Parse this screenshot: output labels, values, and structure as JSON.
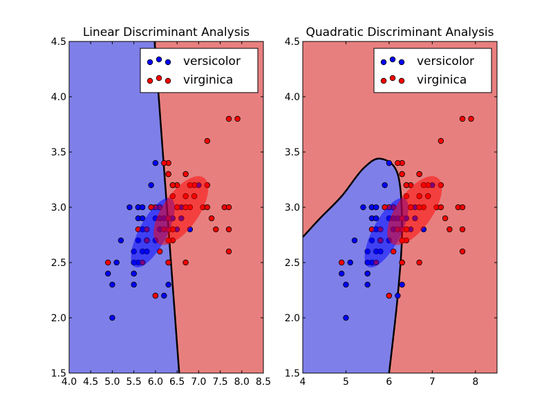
{
  "chart_data": [
    {
      "type": "scatter",
      "title": "Linear Discriminant Analysis",
      "xlabel": "",
      "ylabel": "",
      "xlim": [
        4.0,
        8.5
      ],
      "ylim": [
        1.5,
        4.5
      ],
      "xticks": [
        "4.0",
        "4.5",
        "5.0",
        "5.5",
        "6.0",
        "6.5",
        "7.0",
        "7.5",
        "8.0",
        "8.5"
      ],
      "yticks": [
        "1.5",
        "2.0",
        "2.5",
        "3.0",
        "3.5",
        "4.0",
        "4.5"
      ],
      "legend": {
        "placement": "top-right",
        "entries": [
          "versicolor",
          "virginica"
        ]
      },
      "grid": false,
      "background_regions": [
        {
          "class": "versicolor",
          "color": "#7f7fe9"
        },
        {
          "class": "virginica",
          "color": "#e87f7f"
        }
      ],
      "boundary": {
        "type": "line",
        "points": [
          [
            5.98,
            4.5
          ],
          [
            6.55,
            1.5
          ]
        ]
      },
      "ellipses": [
        {
          "class": "versicolor",
          "center": [
            5.94,
            2.77
          ],
          "color": "#0000ff"
        },
        {
          "class": "virginica",
          "center": [
            6.59,
            2.97
          ],
          "color": "#ff0000"
        }
      ],
      "series": [
        {
          "name": "versicolor",
          "color": "#0000ff",
          "points": [
            [
              7.0,
              3.2
            ],
            [
              6.4,
              3.2
            ],
            [
              6.9,
              3.1
            ],
            [
              5.5,
              2.3
            ],
            [
              6.5,
              2.8
            ],
            [
              5.7,
              2.8
            ],
            [
              6.3,
              3.3
            ],
            [
              4.9,
              2.4
            ],
            [
              6.6,
              2.9
            ],
            [
              5.2,
              2.7
            ],
            [
              5.0,
              2.0
            ],
            [
              5.9,
              3.0
            ],
            [
              6.0,
              2.2
            ],
            [
              6.1,
              2.9
            ],
            [
              5.6,
              2.9
            ],
            [
              6.7,
              3.1
            ],
            [
              5.6,
              3.0
            ],
            [
              5.8,
              2.7
            ],
            [
              6.2,
              2.2
            ],
            [
              5.6,
              2.5
            ],
            [
              5.9,
              3.2
            ],
            [
              6.1,
              2.8
            ],
            [
              6.3,
              2.5
            ],
            [
              6.1,
              2.8
            ],
            [
              6.4,
              2.9
            ],
            [
              6.6,
              3.0
            ],
            [
              6.8,
              2.8
            ],
            [
              6.7,
              3.0
            ],
            [
              6.0,
              2.9
            ],
            [
              5.7,
              2.6
            ],
            [
              5.5,
              2.4
            ],
            [
              5.5,
              2.4
            ],
            [
              5.8,
              2.7
            ],
            [
              6.0,
              2.7
            ],
            [
              5.4,
              3.0
            ],
            [
              6.0,
              3.4
            ],
            [
              6.7,
              3.1
            ],
            [
              6.3,
              2.3
            ],
            [
              5.6,
              3.0
            ],
            [
              5.5,
              2.5
            ],
            [
              5.5,
              2.6
            ],
            [
              6.1,
              3.0
            ],
            [
              5.8,
              2.6
            ],
            [
              5.0,
              2.3
            ],
            [
              5.6,
              2.7
            ],
            [
              5.7,
              3.0
            ],
            [
              5.7,
              2.9
            ],
            [
              6.2,
              2.9
            ],
            [
              5.1,
              2.5
            ],
            [
              5.7,
              2.8
            ]
          ]
        },
        {
          "name": "virginica",
          "color": "#ff0000",
          "points": [
            [
              6.3,
              3.3
            ],
            [
              5.8,
              2.7
            ],
            [
              7.1,
              3.0
            ],
            [
              6.3,
              2.9
            ],
            [
              6.5,
              3.0
            ],
            [
              7.6,
              3.0
            ],
            [
              4.9,
              2.5
            ],
            [
              7.3,
              2.9
            ],
            [
              6.7,
              2.5
            ],
            [
              7.2,
              3.6
            ],
            [
              6.5,
              3.2
            ],
            [
              6.4,
              2.7
            ],
            [
              6.8,
              3.0
            ],
            [
              5.7,
              2.5
            ],
            [
              5.8,
              2.8
            ],
            [
              6.4,
              3.2
            ],
            [
              6.5,
              3.0
            ],
            [
              7.7,
              3.8
            ],
            [
              7.7,
              2.6
            ],
            [
              6.0,
              2.2
            ],
            [
              6.9,
              3.2
            ],
            [
              5.6,
              2.8
            ],
            [
              7.7,
              2.8
            ],
            [
              6.3,
              2.7
            ],
            [
              6.7,
              3.3
            ],
            [
              7.2,
              3.2
            ],
            [
              6.2,
              2.8
            ],
            [
              6.1,
              3.0
            ],
            [
              6.4,
              2.8
            ],
            [
              7.2,
              3.0
            ],
            [
              7.4,
              2.8
            ],
            [
              7.9,
              3.8
            ],
            [
              6.4,
              2.8
            ],
            [
              6.3,
              2.8
            ],
            [
              6.1,
              2.6
            ],
            [
              7.7,
              3.0
            ],
            [
              6.3,
              3.4
            ],
            [
              6.4,
              3.1
            ],
            [
              6.0,
              3.0
            ],
            [
              6.9,
              3.1
            ],
            [
              6.7,
              3.1
            ],
            [
              6.9,
              3.1
            ],
            [
              5.8,
              2.7
            ],
            [
              6.8,
              3.2
            ],
            [
              6.7,
              3.3
            ],
            [
              6.7,
              3.0
            ],
            [
              6.3,
              2.5
            ],
            [
              6.5,
              3.0
            ],
            [
              6.2,
              3.4
            ],
            [
              5.9,
              3.0
            ]
          ]
        }
      ]
    },
    {
      "type": "scatter",
      "title": "Quadratic Discriminant Analysis",
      "xlabel": "",
      "ylabel": "",
      "xlim": [
        4,
        8.5
      ],
      "ylim": [
        1.5,
        4.5
      ],
      "xticks": [
        "4",
        "5",
        "6",
        "7",
        "8"
      ],
      "yticks": [
        "1.5",
        "2.0",
        "2.5",
        "3.0",
        "3.5",
        "4.0",
        "4.5"
      ],
      "legend": {
        "placement": "top-right",
        "entries": [
          "versicolor",
          "virginica"
        ]
      },
      "grid": false,
      "background_regions": [
        {
          "class": "versicolor",
          "color": "#7f7fe9"
        },
        {
          "class": "virginica",
          "color": "#e87f7f"
        }
      ],
      "boundary": {
        "type": "curve",
        "points": [
          [
            6.0,
            1.5
          ],
          [
            6.2,
            2.2
          ],
          [
            6.3,
            2.8
          ],
          [
            6.2,
            3.3
          ],
          [
            5.8,
            3.44
          ],
          [
            5.4,
            3.35
          ],
          [
            4.9,
            3.1
          ],
          [
            4.4,
            2.9
          ],
          [
            4.0,
            2.73
          ]
        ]
      },
      "ellipses": [
        {
          "class": "versicolor",
          "center": [
            5.94,
            2.77
          ],
          "color": "#0000ff"
        },
        {
          "class": "virginica",
          "center": [
            6.59,
            2.97
          ],
          "color": "#ff0000"
        }
      ],
      "series": [
        {
          "name": "versicolor",
          "color": "#0000ff",
          "points": [
            [
              7.0,
              3.2
            ],
            [
              6.4,
              3.2
            ],
            [
              6.9,
              3.1
            ],
            [
              5.5,
              2.3
            ],
            [
              6.5,
              2.8
            ],
            [
              5.7,
              2.8
            ],
            [
              6.3,
              3.3
            ],
            [
              4.9,
              2.4
            ],
            [
              6.6,
              2.9
            ],
            [
              5.2,
              2.7
            ],
            [
              5.0,
              2.0
            ],
            [
              5.9,
              3.0
            ],
            [
              6.0,
              2.2
            ],
            [
              6.1,
              2.9
            ],
            [
              5.6,
              2.9
            ],
            [
              6.7,
              3.1
            ],
            [
              5.6,
              3.0
            ],
            [
              5.8,
              2.7
            ],
            [
              6.2,
              2.2
            ],
            [
              5.6,
              2.5
            ],
            [
              5.9,
              3.2
            ],
            [
              6.1,
              2.8
            ],
            [
              6.3,
              2.5
            ],
            [
              6.1,
              2.8
            ],
            [
              6.4,
              2.9
            ],
            [
              6.6,
              3.0
            ],
            [
              6.8,
              2.8
            ],
            [
              6.7,
              3.0
            ],
            [
              6.0,
              2.9
            ],
            [
              5.7,
              2.6
            ],
            [
              5.5,
              2.4
            ],
            [
              5.5,
              2.4
            ],
            [
              5.8,
              2.7
            ],
            [
              6.0,
              2.7
            ],
            [
              5.4,
              3.0
            ],
            [
              6.0,
              3.4
            ],
            [
              6.7,
              3.1
            ],
            [
              6.3,
              2.3
            ],
            [
              5.6,
              3.0
            ],
            [
              5.5,
              2.5
            ],
            [
              5.5,
              2.6
            ],
            [
              6.1,
              3.0
            ],
            [
              5.8,
              2.6
            ],
            [
              5.0,
              2.3
            ],
            [
              5.6,
              2.7
            ],
            [
              5.7,
              3.0
            ],
            [
              5.7,
              2.9
            ],
            [
              6.2,
              2.9
            ],
            [
              5.1,
              2.5
            ],
            [
              5.7,
              2.8
            ]
          ]
        },
        {
          "name": "virginica",
          "color": "#ff0000",
          "points": [
            [
              6.3,
              3.3
            ],
            [
              5.8,
              2.7
            ],
            [
              7.1,
              3.0
            ],
            [
              6.3,
              2.9
            ],
            [
              6.5,
              3.0
            ],
            [
              7.6,
              3.0
            ],
            [
              4.9,
              2.5
            ],
            [
              7.3,
              2.9
            ],
            [
              6.7,
              2.5
            ],
            [
              7.2,
              3.6
            ],
            [
              6.5,
              3.2
            ],
            [
              6.4,
              2.7
            ],
            [
              6.8,
              3.0
            ],
            [
              5.7,
              2.5
            ],
            [
              5.8,
              2.8
            ],
            [
              6.4,
              3.2
            ],
            [
              6.5,
              3.0
            ],
            [
              7.7,
              3.8
            ],
            [
              7.7,
              2.6
            ],
            [
              6.0,
              2.2
            ],
            [
              6.9,
              3.2
            ],
            [
              5.6,
              2.8
            ],
            [
              7.7,
              2.8
            ],
            [
              6.3,
              2.7
            ],
            [
              6.7,
              3.3
            ],
            [
              7.2,
              3.2
            ],
            [
              6.2,
              2.8
            ],
            [
              6.1,
              3.0
            ],
            [
              6.4,
              2.8
            ],
            [
              7.2,
              3.0
            ],
            [
              7.4,
              2.8
            ],
            [
              7.9,
              3.8
            ],
            [
              6.4,
              2.8
            ],
            [
              6.3,
              2.8
            ],
            [
              6.1,
              2.6
            ],
            [
              7.7,
              3.0
            ],
            [
              6.3,
              3.4
            ],
            [
              6.4,
              3.1
            ],
            [
              6.0,
              3.0
            ],
            [
              6.9,
              3.1
            ],
            [
              6.7,
              3.1
            ],
            [
              6.9,
              3.1
            ],
            [
              5.8,
              2.7
            ],
            [
              6.8,
              3.2
            ],
            [
              6.7,
              3.3
            ],
            [
              6.7,
              3.0
            ],
            [
              6.3,
              2.5
            ],
            [
              6.5,
              3.0
            ],
            [
              6.2,
              3.4
            ],
            [
              5.9,
              3.0
            ]
          ]
        }
      ]
    }
  ]
}
